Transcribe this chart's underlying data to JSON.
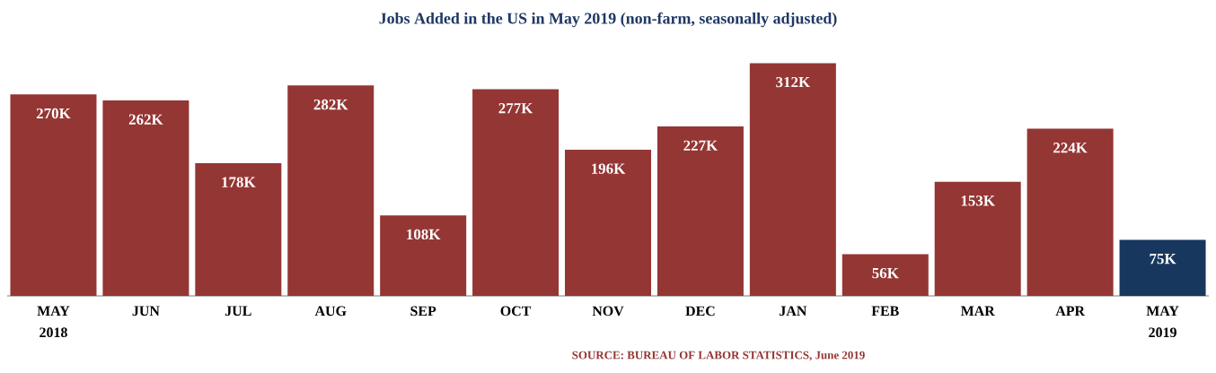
{
  "chart_data": {
    "type": "bar",
    "title": "Jobs Added in the US in May 2019 (non-farm, seasonally adjusted)",
    "categories": [
      "MAY 2018",
      "JUN",
      "JUL",
      "AUG",
      "SEP",
      "OCT",
      "NOV",
      "DEC",
      "JAN",
      "FEB",
      "MAR",
      "APR",
      "MAY 2019"
    ],
    "values": [
      270,
      262,
      178,
      282,
      108,
      277,
      196,
      227,
      312,
      56,
      153,
      224,
      75
    ],
    "value_labels": [
      "270K",
      "262K",
      "178K",
      "282K",
      "108K",
      "277K",
      "196K",
      "227K",
      "312K",
      "56K",
      "153K",
      "224K",
      "75K"
    ],
    "colors": [
      "#943634",
      "#943634",
      "#943634",
      "#943634",
      "#943634",
      "#943634",
      "#943634",
      "#943634",
      "#943634",
      "#943634",
      "#943634",
      "#943634",
      "#17375e"
    ],
    "annotations": [
      "SOURCE: BUREAU OF LABOR STATISTICS, June 2019"
    ]
  }
}
